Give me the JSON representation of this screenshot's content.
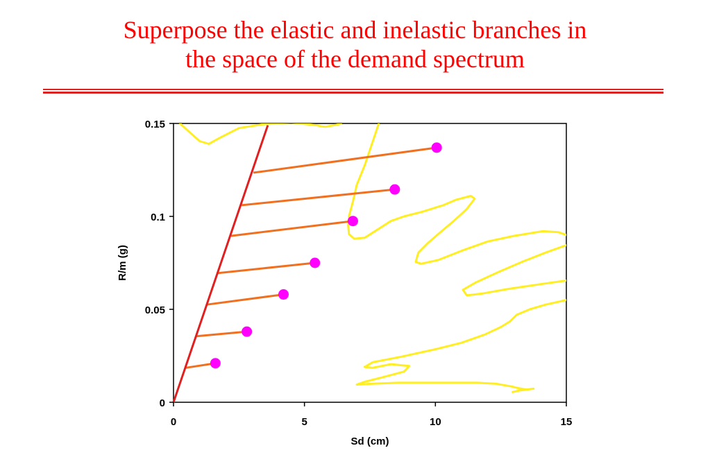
{
  "slide": {
    "title_line1": "Superpose the elastic and inelastic branches in",
    "title_line2": "the space of the demand spectrum",
    "title_color": "#ff0000",
    "rule_color": "#dd2222"
  },
  "chart_data": {
    "type": "line",
    "xlabel": "Sd (cm)",
    "ylabel": "R/m (g)",
    "xlim": [
      0,
      15
    ],
    "ylim": [
      0,
      0.15
    ],
    "xticks": [
      0,
      5,
      10,
      15
    ],
    "yticks": [
      0,
      0.05,
      0.1,
      0.15
    ],
    "xtick_labels": [
      "0",
      "5",
      "10",
      "15"
    ],
    "ytick_labels": [
      "0",
      "0.05",
      "0.1",
      "0.15"
    ],
    "grid": false,
    "legend": "none",
    "elastic_branch": {
      "color": "#e02020",
      "points": [
        [
          0,
          0
        ],
        [
          3.6,
          0.149
        ]
      ]
    },
    "inelastic_branches": {
      "color": "#f07020",
      "segments": [
        [
          [
            0.45,
            0.0185
          ],
          [
            1.6,
            0.021
          ]
        ],
        [
          [
            0.85,
            0.0355
          ],
          [
            2.8,
            0.038
          ]
        ],
        [
          [
            1.25,
            0.0525
          ],
          [
            4.2,
            0.058
          ]
        ],
        [
          [
            1.7,
            0.0695
          ],
          [
            5.4,
            0.075
          ]
        ],
        [
          [
            2.2,
            0.0895
          ],
          [
            6.85,
            0.0975
          ]
        ],
        [
          [
            2.6,
            0.106
          ],
          [
            8.45,
            0.1145
          ]
        ],
        [
          [
            3.05,
            0.1235
          ],
          [
            10.05,
            0.137
          ]
        ]
      ]
    },
    "peak_points": {
      "color": "#ff00ff",
      "points": [
        [
          1.6,
          0.021
        ],
        [
          2.8,
          0.038
        ],
        [
          4.2,
          0.058
        ],
        [
          5.4,
          0.075
        ],
        [
          6.85,
          0.0975
        ],
        [
          8.45,
          0.1145
        ],
        [
          10.05,
          0.137
        ]
      ]
    },
    "demand_spectrum": {
      "color": "#ffee22",
      "curves": [
        [
          [
            0.25,
            0.15
          ],
          [
            0.6,
            0.1455
          ],
          [
            1.0,
            0.1405
          ],
          [
            1.35,
            0.139
          ],
          [
            1.8,
            0.1425
          ],
          [
            2.5,
            0.1475
          ],
          [
            3.4,
            0.1495
          ],
          [
            4.5,
            0.1505
          ],
          [
            5.5,
            0.149
          ],
          [
            5.6,
            0.1485
          ],
          [
            5.8,
            0.1482
          ],
          [
            6.3,
            0.1495
          ],
          [
            6.4,
            0.15
          ]
        ],
        [
          [
            7.85,
            0.1505
          ],
          [
            7.6,
            0.14
          ],
          [
            7.3,
            0.1275
          ],
          [
            7.0,
            0.117
          ],
          [
            6.85,
            0.108
          ],
          [
            6.7,
            0.1
          ],
          [
            6.67,
            0.095
          ],
          [
            6.7,
            0.0905
          ],
          [
            6.9,
            0.088
          ],
          [
            7.3,
            0.0885
          ],
          [
            7.8,
            0.093
          ],
          [
            8.3,
            0.0975
          ],
          [
            8.8,
            0.1
          ],
          [
            9.5,
            0.1025
          ],
          [
            10.3,
            0.106
          ],
          [
            10.8,
            0.109
          ],
          [
            11.35,
            0.111
          ],
          [
            11.5,
            0.1095
          ],
          [
            11.2,
            0.104
          ],
          [
            10.7,
            0.0975
          ],
          [
            10.15,
            0.091
          ],
          [
            9.7,
            0.0855
          ],
          [
            9.35,
            0.0805
          ],
          [
            9.25,
            0.0755
          ],
          [
            9.45,
            0.0745
          ],
          [
            10.1,
            0.0765
          ],
          [
            11.0,
            0.0815
          ],
          [
            12.0,
            0.0865
          ],
          [
            13.0,
            0.0895
          ],
          [
            14.1,
            0.092
          ],
          [
            14.7,
            0.0915
          ],
          [
            15.0,
            0.09
          ]
        ],
        [
          [
            15.0,
            0.0845
          ],
          [
            14.2,
            0.0805
          ],
          [
            13.3,
            0.0755
          ],
          [
            12.4,
            0.07
          ],
          [
            11.55,
            0.0645
          ],
          [
            11.05,
            0.0605
          ],
          [
            11.2,
            0.0575
          ],
          [
            11.8,
            0.0585
          ],
          [
            12.8,
            0.061
          ],
          [
            14.0,
            0.0635
          ],
          [
            15.0,
            0.0655
          ]
        ],
        [
          [
            15.0,
            0.055
          ],
          [
            14.2,
            0.0525
          ],
          [
            13.6,
            0.05
          ],
          [
            13.1,
            0.047
          ],
          [
            12.85,
            0.0435
          ],
          [
            12.5,
            0.0405
          ],
          [
            11.9,
            0.0365
          ],
          [
            11.0,
            0.032
          ],
          [
            10.0,
            0.0285
          ],
          [
            8.7,
            0.0245
          ],
          [
            7.6,
            0.0215
          ],
          [
            7.3,
            0.019
          ],
          [
            7.6,
            0.0185
          ],
          [
            8.3,
            0.0205
          ],
          [
            9.0,
            0.0195
          ],
          [
            8.8,
            0.0165
          ],
          [
            8.0,
            0.0135
          ],
          [
            7.3,
            0.011
          ],
          [
            7.0,
            0.0095
          ],
          [
            7.6,
            0.01
          ],
          [
            8.6,
            0.0105
          ],
          [
            9.7,
            0.0105
          ],
          [
            10.6,
            0.0105
          ],
          [
            11.6,
            0.0105
          ],
          [
            12.3,
            0.01
          ],
          [
            12.9,
            0.0085
          ],
          [
            13.2,
            0.0075
          ],
          [
            13.5,
            0.0068
          ],
          [
            13.75,
            0.0073
          ],
          [
            13.2,
            0.0063
          ],
          [
            12.95,
            0.0055
          ]
        ]
      ]
    }
  }
}
